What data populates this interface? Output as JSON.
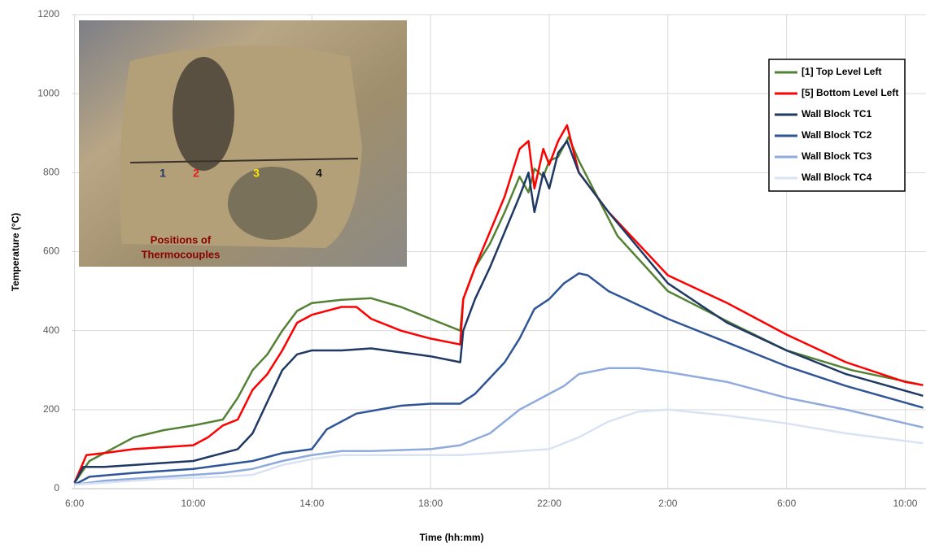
{
  "chart_data": {
    "type": "line",
    "xlabel": "Time (hh:mm)",
    "ylabel": "Temperature (°C)",
    "xlim": [
      -0.1,
      28.7
    ],
    "xticks": [
      {
        "value": 0,
        "label": "6:00"
      },
      {
        "value": 4,
        "label": "10:00"
      },
      {
        "value": 8,
        "label": "14:00"
      },
      {
        "value": 12,
        "label": "18:00"
      },
      {
        "value": 16,
        "label": "22:00"
      },
      {
        "value": 20,
        "label": "2:00"
      },
      {
        "value": 24,
        "label": "6:00"
      },
      {
        "value": 28,
        "label": "10:00"
      }
    ],
    "ylim": [
      0,
      1200
    ],
    "yticks": [
      0,
      200,
      400,
      600,
      800,
      1000,
      1200
    ],
    "grid": true,
    "legend": "upper right",
    "series": [
      {
        "name": "[1] Top Level Left",
        "color": "#548235",
        "x": [
          0,
          0.5,
          2,
          3,
          4,
          5,
          5.5,
          6,
          6.5,
          7,
          7.5,
          8,
          9,
          10,
          11,
          12,
          13,
          13.1,
          13.5,
          14,
          14.5,
          15,
          15.3,
          15.5,
          15.8,
          16,
          16.3,
          16.65,
          17,
          18.3,
          20,
          22.1,
          24,
          26.2,
          28.6
        ],
        "values": [
          15,
          70,
          130,
          148,
          160,
          175,
          230,
          300,
          340,
          400,
          450,
          470,
          478,
          482,
          460,
          430,
          400,
          480,
          560,
          620,
          700,
          790,
          750,
          810,
          790,
          830,
          840,
          890,
          830,
          640,
          500,
          420,
          350,
          300,
          262
        ]
      },
      {
        "name": "[5] Bottom Level Left",
        "color": "#ff0000",
        "x": [
          0,
          0.4,
          1,
          2,
          3,
          4,
          4.5,
          5,
          5.5,
          6,
          6.5,
          7,
          7.5,
          8,
          9,
          9.5,
          10,
          11,
          12,
          13,
          13.1,
          13.5,
          14,
          14.5,
          15,
          15.3,
          15.5,
          15.8,
          16,
          16.3,
          16.6,
          17,
          18,
          20,
          22,
          24,
          26,
          28,
          28.6
        ],
        "values": [
          15,
          85,
          90,
          100,
          105,
          110,
          130,
          160,
          175,
          250,
          290,
          350,
          420,
          440,
          460,
          460,
          430,
          400,
          380,
          365,
          480,
          560,
          650,
          740,
          860,
          880,
          760,
          860,
          820,
          880,
          920,
          800,
          700,
          540,
          470,
          390,
          320,
          270,
          262
        ]
      },
      {
        "name": "Wall Block TC1",
        "color": "#1f3864",
        "x": [
          0,
          0.3,
          1,
          2,
          3,
          4,
          5,
          5.5,
          6,
          6.5,
          7,
          7.5,
          8,
          9,
          10,
          11,
          12,
          13,
          13.1,
          13.5,
          14,
          15,
          15.3,
          15.5,
          15.8,
          16,
          16.3,
          16.6,
          17,
          18,
          20,
          22,
          24,
          26,
          28.6
        ],
        "values": [
          15,
          55,
          55,
          60,
          65,
          70,
          90,
          100,
          140,
          220,
          300,
          340,
          350,
          350,
          355,
          345,
          335,
          320,
          400,
          480,
          560,
          740,
          800,
          700,
          800,
          760,
          850,
          880,
          800,
          700,
          520,
          420,
          350,
          290,
          235
        ]
      },
      {
        "name": "Wall Block TC2",
        "color": "#2f5597",
        "x": [
          0,
          0.5,
          2,
          4,
          6,
          7,
          8,
          8.5,
          9.5,
          11,
          12,
          13,
          13.5,
          14.5,
          15,
          15.5,
          16,
          16.5,
          17,
          17.3,
          18,
          20,
          22,
          24,
          26,
          28.6
        ],
        "values": [
          10,
          30,
          40,
          50,
          70,
          90,
          100,
          150,
          190,
          210,
          215,
          215,
          240,
          320,
          380,
          455,
          480,
          520,
          545,
          540,
          500,
          430,
          370,
          310,
          260,
          205
        ]
      },
      {
        "name": "Wall Block TC3",
        "color": "#8faadc",
        "x": [
          0,
          1,
          3,
          5,
          6,
          7,
          8,
          9,
          10,
          12,
          13,
          14,
          15,
          16,
          16.5,
          17,
          18,
          19,
          20,
          22,
          24,
          26,
          28.6
        ],
        "values": [
          10,
          20,
          30,
          40,
          50,
          70,
          85,
          95,
          95,
          100,
          110,
          140,
          200,
          240,
          260,
          290,
          305,
          305,
          295,
          270,
          230,
          200,
          155
        ]
      },
      {
        "name": "Wall Block TC4",
        "color": "#dae3f3",
        "x": [
          0,
          1,
          3,
          5,
          6,
          7,
          8,
          9,
          11,
          13,
          14,
          15,
          16,
          17,
          18,
          19,
          20,
          22,
          24,
          26,
          28.6
        ],
        "values": [
          10,
          15,
          25,
          30,
          35,
          60,
          75,
          85,
          85,
          85,
          90,
          95,
          100,
          130,
          170,
          195,
          200,
          185,
          165,
          140,
          115
        ]
      }
    ],
    "inset": {
      "markers": [
        "1",
        "2",
        "3",
        "4"
      ],
      "caption": [
        "Positions of",
        "Thermocouples"
      ]
    }
  }
}
